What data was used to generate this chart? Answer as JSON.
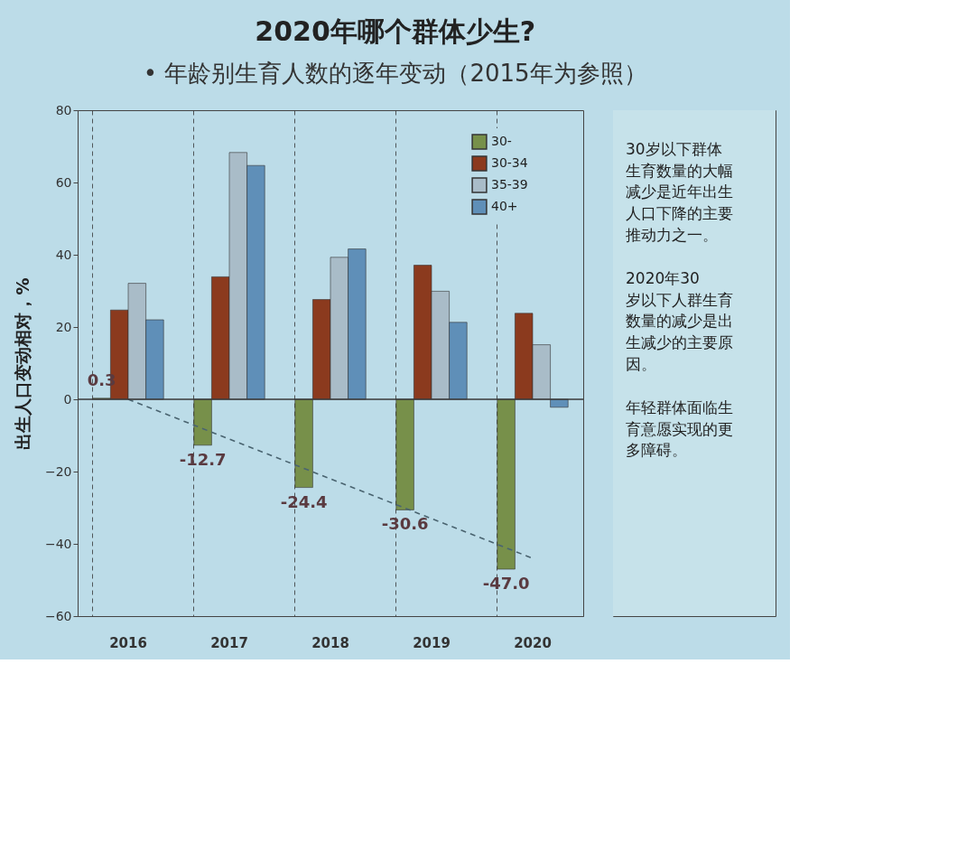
{
  "chart_data": {
    "type": "bar",
    "title": "2020年哪个群体少生?",
    "subtitle": "• 年龄别生育人数的逐年变动（2015年为参照）",
    "ylabel": "出生人口变动相对，%",
    "categories": [
      "2016",
      "2017",
      "2018",
      "2019",
      "2020"
    ],
    "series": [
      {
        "name": "30-",
        "color": "#77904a",
        "values": [
          0.3,
          -12.7,
          -24.4,
          -30.6,
          -47.0
        ],
        "value_labels": [
          "0.3",
          "-12.7",
          "-24.4",
          "-30.6",
          "-47.0"
        ]
      },
      {
        "name": "30-34",
        "color": "#8b3a1e",
        "values": [
          24.7,
          33.9,
          27.6,
          37.1,
          23.8
        ]
      },
      {
        "name": "35-39",
        "color": "#a9bcc8",
        "values": [
          32.1,
          68.3,
          39.3,
          29.9,
          15.1
        ]
      },
      {
        "name": "40+",
        "color": "#5f8fb8",
        "values": [
          22.0,
          64.7,
          41.6,
          21.3,
          -2.2
        ]
      },
      {
        "type": "line",
        "color": "#4a6470",
        "line_style": "dashed",
        "values": [
          0,
          -11,
          -22,
          -33,
          -44
        ]
      }
    ],
    "ylim": [
      -60,
      80
    ],
    "yticks": [
      -60,
      -40,
      -20,
      0,
      20,
      40,
      60,
      80
    ],
    "ref_lines": [
      {
        "axis": "y",
        "value": 0,
        "color": "#3a3a3a"
      }
    ],
    "grid": "x",
    "legend": "top right",
    "annotations": [
      "30岁以下群体生育数量的大幅减少是近年出生人口下降的主要推动力之一。",
      "2020年30岁以下人群生育数量的减少是出生减少的主要原因。",
      "年轻群体面临生育意愿实现的更多障碍。"
    ]
  }
}
